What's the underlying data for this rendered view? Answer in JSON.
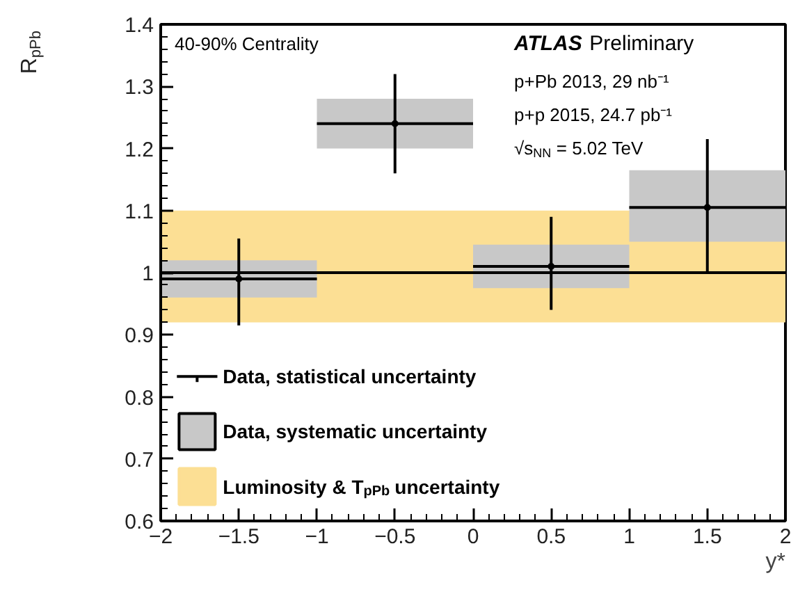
{
  "chart_data": {
    "type": "scatter",
    "xlabel": "y*",
    "ylabel": "R$_{pPb}$",
    "xlim": [
      -2,
      2
    ],
    "ylim": [
      0.6,
      1.4
    ],
    "xticks": [
      -2,
      -1.5,
      -1,
      -0.5,
      0,
      0.5,
      1,
      1.5,
      2
    ],
    "yticks": [
      0.6,
      0.7,
      0.8,
      0.9,
      1,
      1.1,
      1.2,
      1.3,
      1.4
    ],
    "series": [
      {
        "type": "bar",
        "name": "Data, systematic uncertainty",
        "color": "#c8c8c8",
        "x": [
          -1.5,
          -0.5,
          0.5,
          1.5
        ],
        "base": [
          0.96,
          1.2,
          0.975,
          1.05
        ],
        "values": [
          0.06,
          0.08,
          0.07,
          0.115
        ]
      },
      {
        "type": "scatter",
        "name": "Data, statistical uncertainty",
        "color": "#000000",
        "x": [
          -1.5,
          -0.5,
          0.5,
          1.5
        ],
        "values": [
          0.99,
          1.24,
          1.01,
          1.105
        ],
        "errors": [
          [
            0.915,
            1.055
          ],
          [
            1.16,
            1.32
          ],
          [
            0.94,
            1.09
          ],
          [
            1.0,
            1.215
          ]
        ],
        "xerrors": [
          [
            -2,
            -1
          ],
          [
            -1,
            0
          ],
          [
            0,
            1
          ],
          [
            1,
            2
          ]
        ]
      }
    ],
    "bands": [
      {
        "axis": "y",
        "from": 0.92,
        "to": 1.1,
        "label": "Luminosity & T$_{pPb}$ uncertainty",
        "color": "#fcdf94"
      }
    ],
    "ref_lines": [
      {
        "axis": "y",
        "value": 1,
        "color": "#000000",
        "line_style": "solid"
      }
    ],
    "annotations": [
      "40-90% Centrality",
      "ATLAS Preliminary",
      "p+Pb 2013, 29 nb⁻¹",
      "p+p 2015, 24.7 pb⁻¹",
      "√s$_{NN}$ = 5.02 TeV"
    ],
    "legend": "bottom left",
    "grid": false,
    "marker": "circle"
  }
}
